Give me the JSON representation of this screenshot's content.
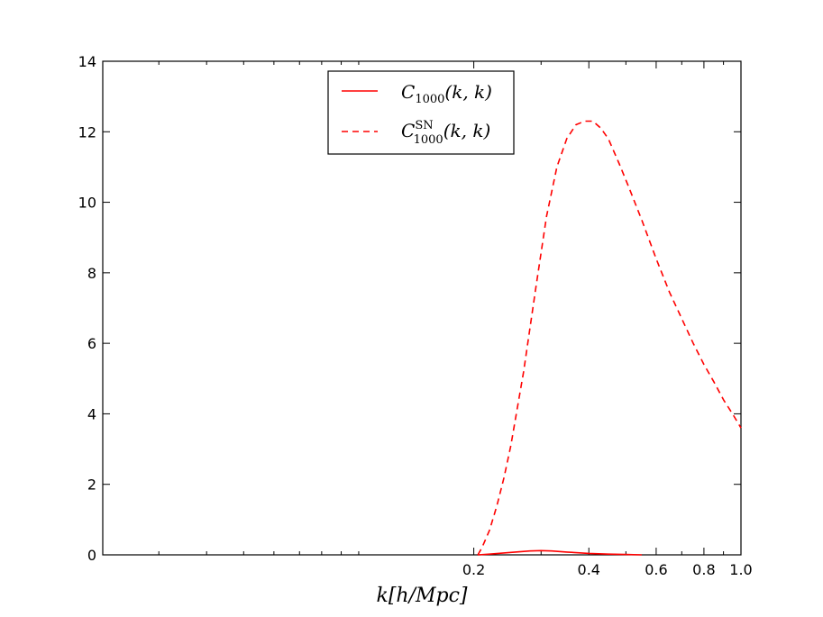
{
  "chart_data": {
    "type": "line",
    "xlabel": "k[h/Mpc]",
    "ylabel": "",
    "xscale": "log",
    "xlim": [
      0.0214,
      1.0
    ],
    "ylim": [
      0,
      14
    ],
    "grid": false,
    "legend_position": "top-center",
    "xticks": [
      {
        "value": 0.2,
        "label": "0.2"
      },
      {
        "value": 0.4,
        "label": "0.4"
      },
      {
        "value": 0.6,
        "label": "0.6"
      },
      {
        "value": 0.8,
        "label": "0.8"
      },
      {
        "value": 1.0,
        "label": "1.0"
      }
    ],
    "yticks": [
      {
        "value": 0,
        "label": "0"
      },
      {
        "value": 2,
        "label": "2"
      },
      {
        "value": 4,
        "label": "4"
      },
      {
        "value": 6,
        "label": "6"
      },
      {
        "value": 8,
        "label": "8"
      },
      {
        "value": 10,
        "label": "10"
      },
      {
        "value": 12,
        "label": "12"
      },
      {
        "value": 14,
        "label": "14"
      }
    ],
    "series": [
      {
        "name": "C_1000(k, k)",
        "legend_main": "C",
        "legend_sub": "1000",
        "legend_sup": "",
        "legend_args": "(k, k)",
        "color": "#ff0000",
        "style": "solid",
        "x": [
          0.205,
          0.22,
          0.25,
          0.28,
          0.3,
          0.32,
          0.35,
          0.4,
          0.45,
          0.5,
          0.55
        ],
        "y": [
          0.0,
          0.02,
          0.07,
          0.11,
          0.12,
          0.11,
          0.08,
          0.04,
          0.02,
          0.01,
          0.0
        ]
      },
      {
        "name": "C_1000^SN(k, k)",
        "legend_main": "C",
        "legend_sub": "1000",
        "legend_sup": "SN",
        "legend_args": "(k, k)",
        "color": "#ff0000",
        "style": "dashed",
        "x": [
          0.205,
          0.21,
          0.22,
          0.23,
          0.24,
          0.25,
          0.27,
          0.29,
          0.31,
          0.33,
          0.35,
          0.37,
          0.39,
          0.41,
          0.43,
          0.45,
          0.48,
          0.51,
          0.55,
          0.6,
          0.65,
          0.7,
          0.75,
          0.8,
          0.85,
          0.9,
          0.95,
          1.0
        ],
        "y": [
          0.0,
          0.2,
          0.7,
          1.4,
          2.2,
          3.1,
          5.2,
          7.5,
          9.6,
          11.0,
          11.8,
          12.2,
          12.3,
          12.3,
          12.1,
          11.8,
          11.1,
          10.4,
          9.5,
          8.4,
          7.45,
          6.7,
          6.0,
          5.4,
          4.9,
          4.4,
          4.0,
          3.6
        ]
      }
    ]
  }
}
